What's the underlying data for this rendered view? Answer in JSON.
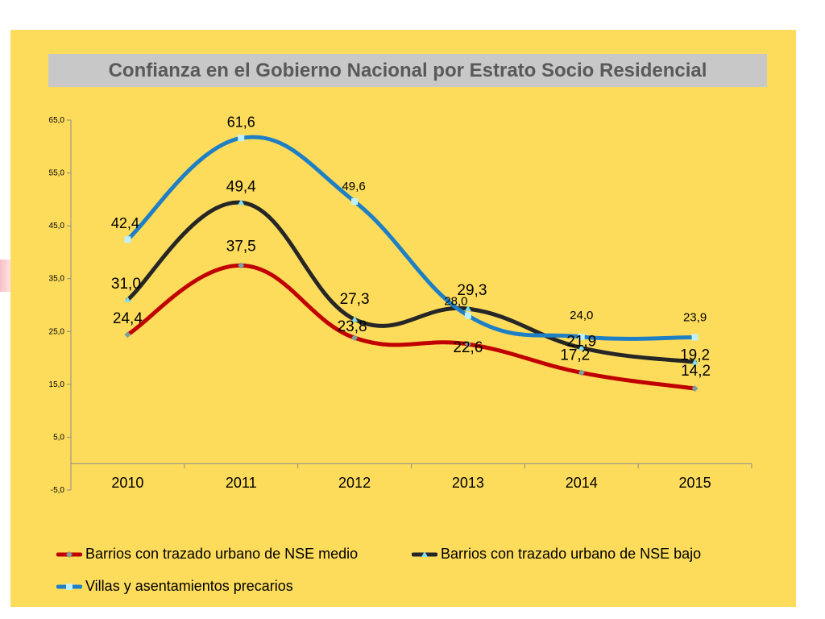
{
  "chart_data": {
    "type": "line",
    "title": "Confianza en el Gobierno Nacional por Estrato Socio Residencial",
    "xlabel": "",
    "ylabel": "",
    "categories": [
      "2010",
      "2011",
      "2012",
      "2013",
      "2014",
      "2015"
    ],
    "ylim": [
      -5,
      65
    ],
    "yticks": [
      "65,0",
      "55,0",
      "45,0",
      "35,0",
      "25,0",
      "15,0",
      "5,0",
      "-5,0"
    ],
    "grid": false,
    "legend_position": "bottom",
    "smooth": true,
    "series": [
      {
        "name": "Barrios con trazado urbano de NSE medio",
        "color": "#c00000",
        "marker": "diamond",
        "values": [
          24.4,
          37.5,
          23.8,
          22.6,
          17.2,
          14.2
        ],
        "labels": [
          "24,4",
          "37,5",
          "23,8",
          "22,6",
          "17,2",
          "14,2"
        ]
      },
      {
        "name": "Barrios con trazado urbano de NSE bajo",
        "color": "#262626",
        "marker": "triangle",
        "values": [
          31.0,
          49.4,
          27.3,
          29.3,
          21.9,
          19.2
        ],
        "labels": [
          "31,0",
          "49,4",
          "27,3",
          "29,3",
          "21,9",
          "19,2"
        ]
      },
      {
        "name": "Villas y asentamientos precarios",
        "color": "#1f7fc4",
        "marker": "square",
        "values": [
          42.4,
          61.6,
          49.6,
          28.0,
          24.0,
          23.9
        ],
        "labels": [
          "42,4",
          "61,6",
          "49,6",
          "28,0",
          "24,0",
          "23,9"
        ]
      }
    ]
  }
}
